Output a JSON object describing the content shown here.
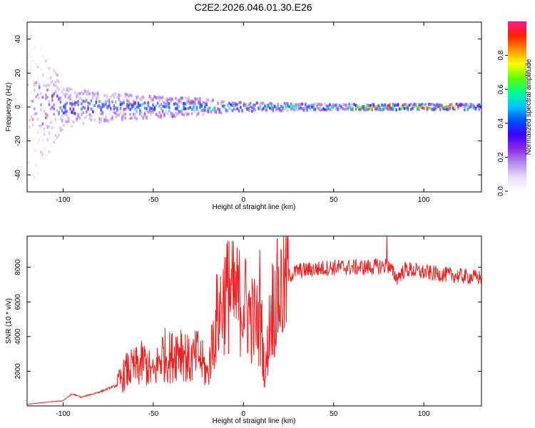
{
  "title": "C2E2.2026.046.01.30.E26",
  "colors": {
    "snr_line": "#ee2222",
    "frame": "#000000",
    "colormap": [
      "#ffffff",
      "#e9d9f7",
      "#b18ae6",
      "#8a2be2",
      "#3b00ff",
      "#0050ff",
      "#00c8ff",
      "#00ff90",
      "#60ff00",
      "#ffff00",
      "#ff9000",
      "#ff2000",
      "#ff1493"
    ]
  },
  "chart_data": [
    {
      "id": "spectrogram",
      "type": "heatmap",
      "title": "C2E2.2026.046.01.30.E26",
      "xlabel": "Height of straight line (km)",
      "ylabel": "Frequency (Hz)",
      "xlim": [
        -120,
        132
      ],
      "ylim": [
        -50,
        50
      ],
      "xticks": [
        -100,
        -50,
        0,
        50,
        100
      ],
      "xtick_labels": [
        "-100",
        "-50",
        "0",
        "50",
        "100"
      ],
      "yticks": [
        -40,
        -20,
        0,
        20,
        40
      ],
      "ytick_labels": [
        "-40",
        "-20",
        "0",
        "20",
        "40"
      ],
      "colorbar": {
        "label": "Normalized spectral amplitude",
        "range": [
          0,
          1
        ],
        "ticks": [
          0.0,
          0.2,
          0.4,
          0.6,
          0.8
        ],
        "tick_labels": [
          "0.0",
          "0.2",
          "0.4",
          "0.6",
          "0.8"
        ]
      },
      "description_points": [
        {
          "x": -120,
          "spread_hz": 50,
          "amplitude": 0.15
        },
        {
          "x": -100,
          "spread_hz": 12,
          "amplitude": 0.35
        },
        {
          "x": -60,
          "spread_hz": 8,
          "amplitude": 0.4
        },
        {
          "x": -30,
          "spread_hz": 6,
          "amplitude": 0.45
        },
        {
          "x": 0,
          "spread_hz": 3,
          "amplitude": 0.5
        },
        {
          "x": 50,
          "spread_hz": 2,
          "amplitude": 0.5
        },
        {
          "x": 80,
          "spread_hz": 2,
          "amplitude": 0.7
        },
        {
          "x": 95,
          "spread_hz": 2,
          "amplitude": 0.8
        },
        {
          "x": 132,
          "spread_hz": 2,
          "amplitude": 0.5
        }
      ]
    },
    {
      "id": "snr",
      "type": "line",
      "xlabel": "Height of straight line (km)",
      "ylabel": "SNR (10 * v/v)",
      "xlim": [
        -120,
        132
      ],
      "ylim": [
        0,
        9800
      ],
      "xticks": [
        -100,
        -50,
        0,
        50,
        100
      ],
      "xtick_labels": [
        "-100",
        "-50",
        "0",
        "50",
        "100"
      ],
      "yticks": [
        2000,
        4000,
        6000,
        8000
      ],
      "ytick_labels": [
        "2000",
        "4000",
        "6000",
        "8000"
      ],
      "series": [
        {
          "name": "SNR",
          "x": [
            -120,
            -110,
            -100,
            -95,
            -90,
            -80,
            -70,
            -65,
            -60,
            -55,
            -50,
            -45,
            -40,
            -35,
            -30,
            -25,
            -20,
            -15,
            -10,
            -5,
            0,
            5,
            10,
            12,
            15,
            20,
            25,
            30,
            40,
            50,
            60,
            70,
            80,
            85,
            90,
            100,
            110,
            120,
            132
          ],
          "y": [
            100,
            200,
            300,
            700,
            500,
            800,
            1200,
            2000,
            2200,
            2500,
            1800,
            3000,
            2800,
            3500,
            2500,
            3000,
            1800,
            5000,
            6500,
            6200,
            6000,
            5000,
            4500,
            1500,
            5500,
            6500,
            7500,
            7800,
            7900,
            8000,
            8000,
            8000,
            8100,
            7400,
            7900,
            7700,
            7600,
            7500,
            7400
          ]
        }
      ],
      "spikes": [
        {
          "x": -8,
          "y": 9500
        },
        {
          "x": 9,
          "y": 9000
        },
        {
          "x": 79.5,
          "y": 9800
        }
      ]
    }
  ]
}
